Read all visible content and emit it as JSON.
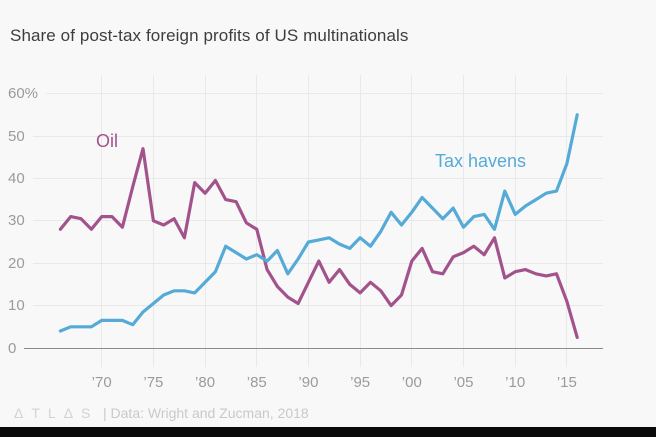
{
  "chart_data": {
    "type": "line",
    "title": "Share of post-tax foreign profits of US multinationals",
    "xlabel": "",
    "ylabel": "",
    "ylim": [
      0,
      60
    ],
    "grid": true,
    "legend": "inline-labels",
    "x": [
      1966,
      1967,
      1968,
      1969,
      1970,
      1971,
      1972,
      1973,
      1974,
      1975,
      1976,
      1977,
      1978,
      1979,
      1980,
      1981,
      1982,
      1983,
      1984,
      1985,
      1986,
      1987,
      1988,
      1989,
      1990,
      1991,
      1992,
      1993,
      1994,
      1995,
      1996,
      1997,
      1998,
      1999,
      2000,
      2001,
      2002,
      2003,
      2004,
      2005,
      2006,
      2007,
      2008,
      2009,
      2010,
      2011,
      2012,
      2013,
      2014,
      2015,
      2016
    ],
    "series": [
      {
        "name": "Oil",
        "color": "#a3538c",
        "values": [
          28,
          31,
          30.5,
          28,
          31,
          31,
          28.5,
          38,
          47,
          30,
          29,
          30.5,
          26,
          39,
          36.5,
          39.5,
          35,
          34.5,
          29.5,
          28,
          18.5,
          14.5,
          12,
          10.5,
          15.5,
          20.5,
          15.5,
          18.5,
          15,
          13,
          15.5,
          13.5,
          10,
          12.5,
          20.5,
          23.5,
          18,
          17.5,
          21.5,
          22.5,
          24,
          22,
          26,
          16.5,
          18,
          18.5,
          17.5,
          17,
          17.5,
          11,
          2.5
        ]
      },
      {
        "name": "Tax havens",
        "color": "#55aad7",
        "values": [
          4,
          5,
          5,
          5,
          6.5,
          6.5,
          6.5,
          5.5,
          8.5,
          10.5,
          12.5,
          13.5,
          13.5,
          13,
          15.5,
          18,
          24,
          22.5,
          21,
          22,
          20.5,
          23,
          17.5,
          21,
          25,
          25.5,
          26,
          24.5,
          23.5,
          26,
          24,
          27.5,
          32,
          29,
          32,
          35.5,
          33,
          30.5,
          33,
          28.5,
          31,
          31.5,
          28,
          37,
          31.5,
          33.5,
          35,
          36.5,
          37,
          43.5,
          55
        ]
      },
      {
        "name_note": ""
      }
    ],
    "yticks": [
      {
        "label": "60%",
        "value": 60
      },
      {
        "label": "50",
        "value": 50
      },
      {
        "label": "40",
        "value": 40
      },
      {
        "label": "30",
        "value": 30
      },
      {
        "label": "20",
        "value": 20
      },
      {
        "label": "10",
        "value": 10
      },
      {
        "label": "0",
        "value": 0
      }
    ],
    "xticks": [
      {
        "label": "’70",
        "year": 1970
      },
      {
        "label": "’75",
        "year": 1975
      },
      {
        "label": "’80",
        "year": 1980
      },
      {
        "label": "’85",
        "year": 1985
      },
      {
        "label": "’90",
        "year": 1990
      },
      {
        "label": "’95",
        "year": 1995
      },
      {
        "label": "’00",
        "year": 2000
      },
      {
        "label": "’05",
        "year": 2005
      },
      {
        "label": "’10",
        "year": 2010
      },
      {
        "label": "’15",
        "year": 2015
      }
    ]
  },
  "footer": {
    "logo": "ΔTLΔS",
    "credit": "| Data: Wright and Zucman, 2018"
  }
}
